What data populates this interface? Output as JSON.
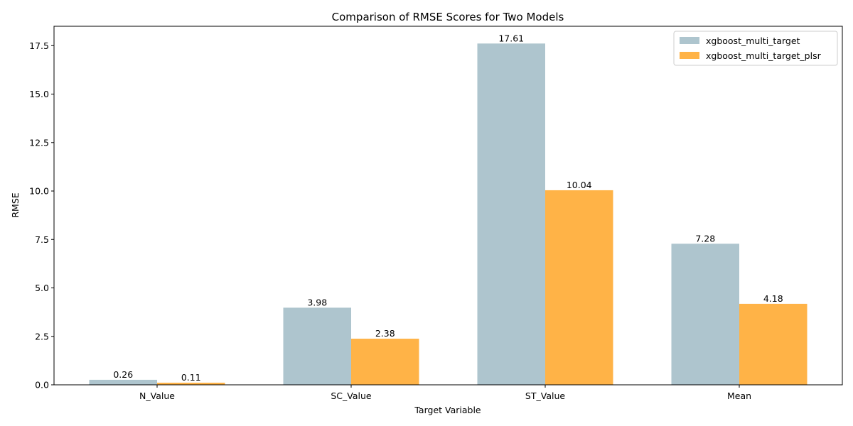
{
  "chart_data": {
    "type": "bar",
    "title": "Comparison of RMSE Scores for Two Models",
    "xlabel": "Target Variable",
    "ylabel": "RMSE",
    "categories": [
      "N_Value",
      "SC_Value",
      "ST_Value",
      "Mean"
    ],
    "series": [
      {
        "name": "xgboost_multi_target",
        "values": [
          0.26,
          3.98,
          17.61,
          7.28
        ],
        "color": "#aec5ce"
      },
      {
        "name": "xgboost_multi_target_plsr",
        "values": [
          0.11,
          2.38,
          10.04,
          4.18
        ],
        "color": "#ffb347"
      }
    ],
    "ylim": [
      0,
      18.5
    ],
    "yticks": [
      0.0,
      2.5,
      5.0,
      7.5,
      10.0,
      12.5,
      15.0,
      17.5
    ],
    "ytick_labels": [
      "0.0",
      "2.5",
      "5.0",
      "7.5",
      "10.0",
      "12.5",
      "15.0",
      "17.5"
    ],
    "data_labels": [
      [
        "0.26",
        "3.98",
        "17.61",
        "7.28"
      ],
      [
        "0.11",
        "2.38",
        "10.04",
        "4.18"
      ]
    ],
    "grid": false,
    "legend_position": "top-right"
  }
}
